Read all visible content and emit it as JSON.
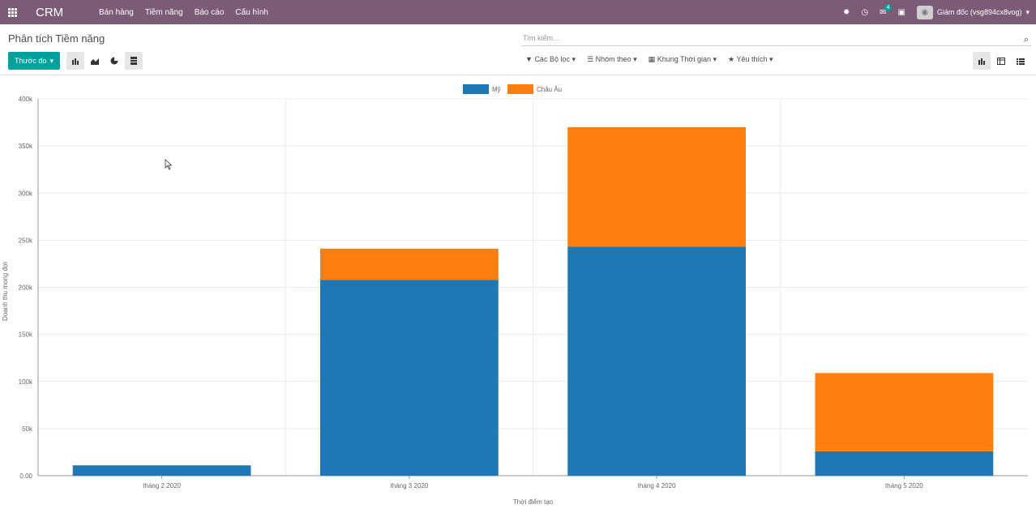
{
  "topbar": {
    "app_name": "CRM",
    "menu": [
      "Bán hàng",
      "Tiềm năng",
      "Báo cáo",
      "Cấu hình"
    ],
    "messages_badge": "4",
    "user_name": "Giám đốc (vsg894cx8vog)"
  },
  "control": {
    "title": "Phân tích Tiềm năng",
    "search_placeholder": "Tìm kiếm...",
    "measure_label": "Thước đo",
    "filters": [
      "Các Bộ lọc",
      "Nhóm theo",
      "Khung Thời gian",
      "Yêu thích"
    ]
  },
  "colors": {
    "topbar": "#7c5b76",
    "primary": "#00a09d",
    "series_my": "#1f77b4",
    "series_eu": "#ff7f0e"
  },
  "chart_data": {
    "type": "bar",
    "stacked": true,
    "categories": [
      "tháng 2 2020",
      "tháng 3 2020",
      "tháng 4 2020",
      "tháng 5 2020"
    ],
    "series": [
      {
        "name": "Mỹ",
        "color": "#1f77b4",
        "values": [
          11000,
          208000,
          243000,
          26000
        ]
      },
      {
        "name": "Châu Âu",
        "color": "#ff7f0e",
        "values": [
          0,
          33000,
          127000,
          83000
        ]
      }
    ],
    "xlabel": "Thời điểm tạo",
    "ylabel": "Doanh thu mong đợi",
    "ylim": [
      0,
      400000
    ],
    "yticks": [
      "0.00",
      "50k",
      "100k",
      "150k",
      "200k",
      "250k",
      "300k",
      "350k",
      "400k"
    ],
    "legend": "top-center",
    "grid": true
  }
}
